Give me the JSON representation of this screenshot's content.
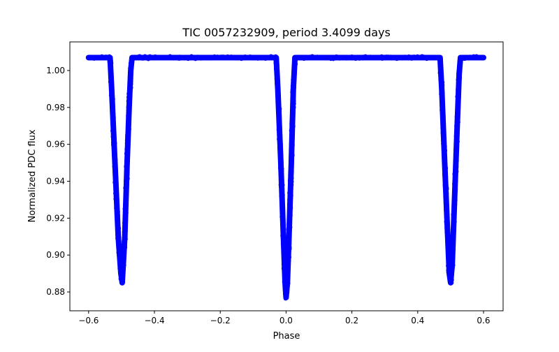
{
  "chart_data": {
    "type": "scatter",
    "title": "TIC 0057232909, period 3.4099 days",
    "xlabel": "Phase",
    "ylabel": "Normalized PDC flux",
    "xlim": [
      -0.657,
      0.6595
    ],
    "ylim": [
      0.8698,
      1.0155
    ],
    "xticks": [
      -0.6,
      -0.4,
      -0.2,
      0.0,
      0.2,
      0.4,
      0.6
    ],
    "xtick_labels": [
      "−0.6",
      "−0.4",
      "−0.2",
      "0.0",
      "0.2",
      "0.4",
      "0.6"
    ],
    "yticks": [
      0.88,
      0.9,
      0.92,
      0.94,
      0.96,
      0.98,
      1.0
    ],
    "ytick_labels": [
      "0.88",
      "0.90",
      "0.92",
      "0.94",
      "0.96",
      "0.98",
      "1.00"
    ],
    "grid": false,
    "color": "#0000ff",
    "series": [
      {
        "name": "light curve",
        "points": [
          [
            -0.6,
            1.007
          ],
          [
            -0.535,
            1.007
          ],
          [
            -0.53,
            0.99
          ],
          [
            -0.52,
            0.95
          ],
          [
            -0.51,
            0.91
          ],
          [
            -0.502,
            0.89
          ],
          [
            -0.498,
            0.885
          ],
          [
            -0.49,
            0.91
          ],
          [
            -0.483,
            0.95
          ],
          [
            -0.477,
            0.98
          ],
          [
            -0.472,
            1.0
          ],
          [
            -0.468,
            1.007
          ],
          [
            -0.03,
            1.007
          ],
          [
            -0.025,
            0.99
          ],
          [
            -0.016,
            0.95
          ],
          [
            -0.008,
            0.91
          ],
          [
            -0.003,
            0.885
          ],
          [
            0.0,
            0.877
          ],
          [
            0.004,
            0.885
          ],
          [
            0.009,
            0.91
          ],
          [
            0.016,
            0.95
          ],
          [
            0.022,
            0.99
          ],
          [
            0.027,
            1.007
          ],
          [
            0.468,
            1.007
          ],
          [
            0.473,
            0.99
          ],
          [
            0.482,
            0.95
          ],
          [
            0.49,
            0.915
          ],
          [
            0.496,
            0.89
          ],
          [
            0.5,
            0.885
          ],
          [
            0.505,
            0.895
          ],
          [
            0.512,
            0.93
          ],
          [
            0.52,
            0.97
          ],
          [
            0.526,
            0.998
          ],
          [
            0.53,
            1.007
          ],
          [
            0.6,
            1.007
          ]
        ]
      }
    ]
  }
}
